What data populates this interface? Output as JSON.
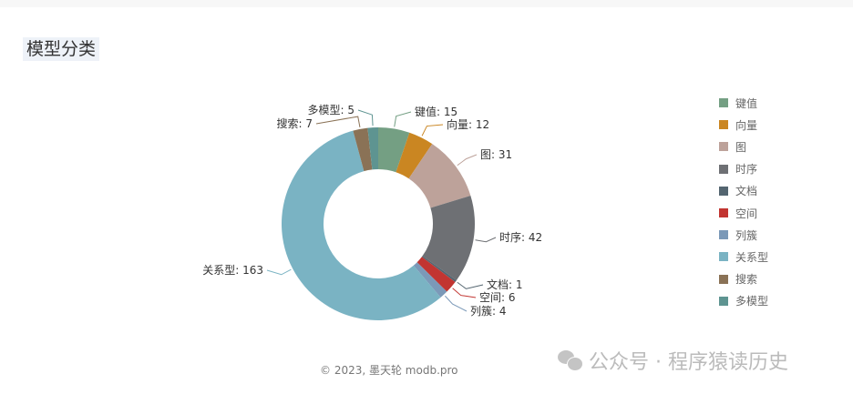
{
  "title": "模型分类",
  "chart_data": {
    "type": "pie",
    "donut": true,
    "title": "模型分类",
    "categories": [
      "键值",
      "向量",
      "图",
      "时序",
      "文档",
      "空间",
      "列簇",
      "关系型",
      "搜索",
      "多模型"
    ],
    "values": [
      15,
      12,
      31,
      42,
      1,
      6,
      4,
      163,
      7,
      5
    ],
    "colors": [
      "#749f83",
      "#ca8622",
      "#bda29a",
      "#6e7074",
      "#546570",
      "#c23531",
      "#7b99b8",
      "#7ab3c3",
      "#8a7256",
      "#5e9491"
    ],
    "legend_position": "right",
    "start": "top",
    "direction": "clockwise"
  },
  "footer": "© 2023, 墨天轮 modb.pro",
  "watermark": "公众号 · 程序猿读历史",
  "icons": {
    "watermark": "wechat-icon"
  }
}
